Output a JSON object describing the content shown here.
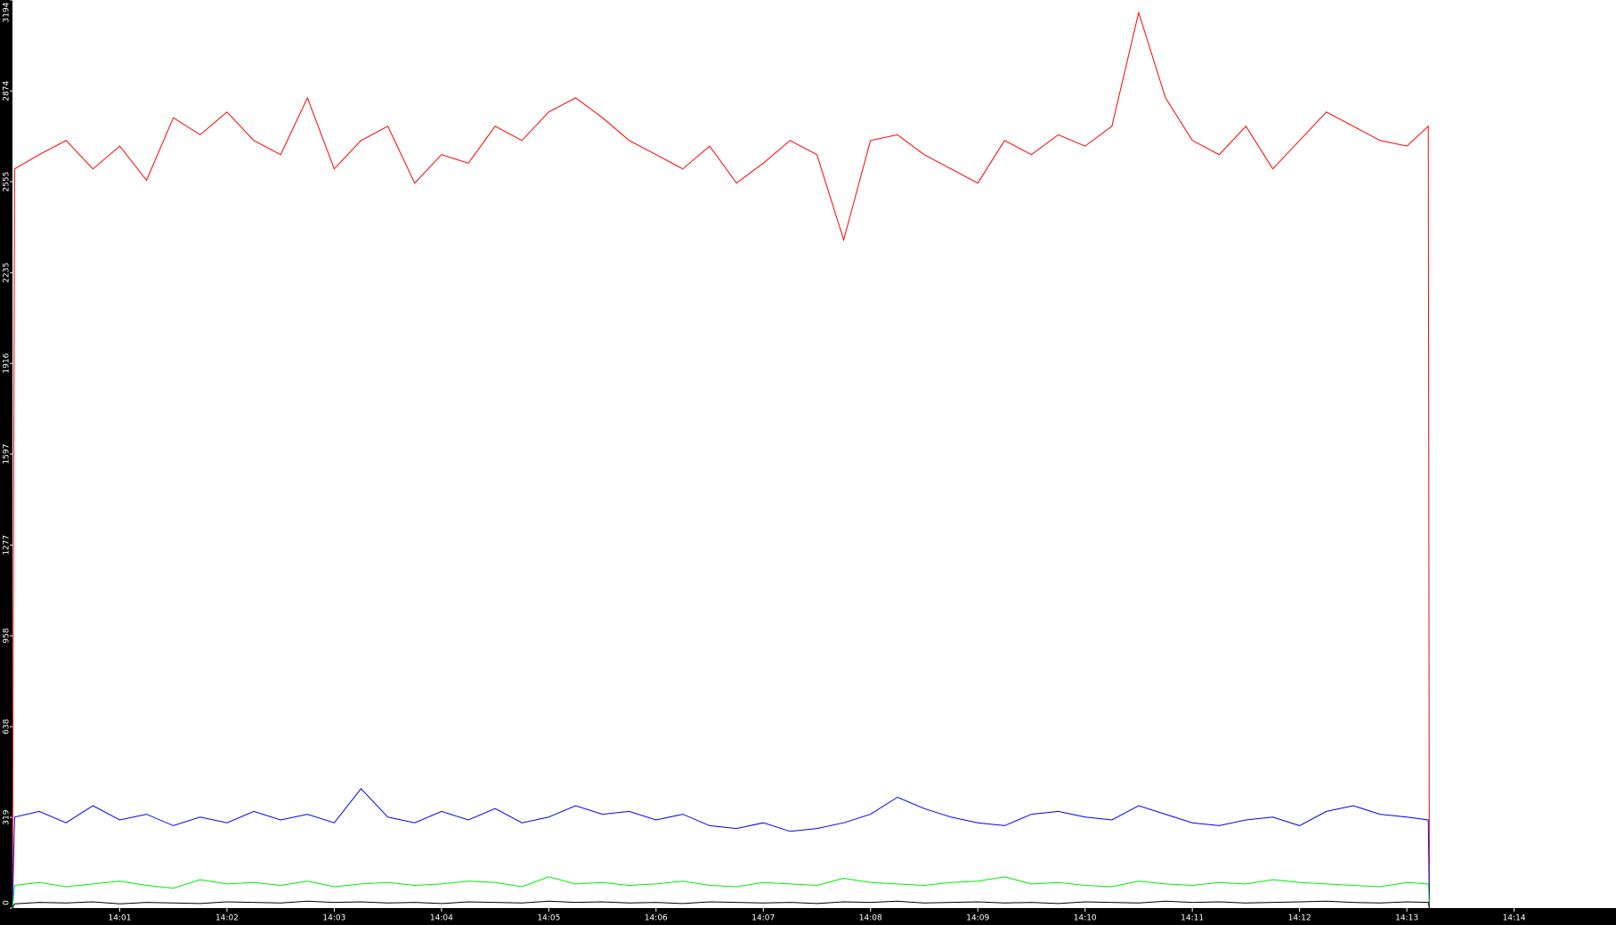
{
  "chart_data": {
    "type": "line",
    "x": [
      0,
      0.02,
      0.25,
      0.5,
      0.75,
      1.0,
      1.25,
      1.5,
      1.75,
      2.0,
      2.25,
      2.5,
      2.75,
      3.0,
      3.25,
      3.5,
      3.75,
      4.0,
      4.25,
      4.5,
      4.75,
      5.0,
      5.25,
      5.5,
      5.75,
      6.0,
      6.25,
      6.5,
      6.75,
      7.0,
      7.25,
      7.5,
      7.75,
      8.0,
      8.25,
      8.5,
      8.75,
      9.0,
      9.25,
      9.5,
      9.75,
      10.0,
      10.25,
      10.5,
      10.75,
      11.0,
      11.25,
      11.5,
      11.75,
      12.0,
      12.25,
      12.5,
      12.75,
      13.0,
      13.2,
      13.21
    ],
    "series": [
      {
        "color": "#ff0000",
        "values": [
          0,
          2600,
          2650,
          2700,
          2600,
          2680,
          2560,
          2780,
          2720,
          2800,
          2700,
          2650,
          2850,
          2600,
          2700,
          2750,
          2550,
          2650,
          2620,
          2750,
          2700,
          2800,
          2850,
          2780,
          2700,
          2650,
          2600,
          2680,
          2550,
          2620,
          2700,
          2650,
          2350,
          2700,
          2720,
          2650,
          2600,
          2550,
          2700,
          2650,
          2720,
          2680,
          2750,
          3150,
          2850,
          2700,
          2650,
          2750,
          2600,
          2700,
          2800,
          2750,
          2700,
          2680,
          2750,
          0
        ]
      },
      {
        "color": "#0000ff",
        "values": [
          0,
          320,
          340,
          300,
          360,
          310,
          330,
          290,
          320,
          300,
          340,
          310,
          330,
          300,
          420,
          320,
          300,
          340,
          310,
          350,
          300,
          320,
          360,
          330,
          340,
          310,
          330,
          290,
          280,
          300,
          270,
          280,
          300,
          330,
          390,
          350,
          320,
          300,
          290,
          330,
          340,
          320,
          310,
          360,
          330,
          300,
          290,
          310,
          320,
          290,
          340,
          360,
          330,
          320,
          310,
          0
        ]
      },
      {
        "color": "#00ee00",
        "values": [
          0,
          80,
          90,
          75,
          85,
          95,
          80,
          70,
          100,
          85,
          90,
          80,
          95,
          75,
          85,
          90,
          80,
          85,
          95,
          90,
          75,
          110,
          85,
          90,
          80,
          85,
          95,
          80,
          75,
          90,
          85,
          80,
          105,
          90,
          85,
          80,
          90,
          95,
          110,
          85,
          90,
          80,
          75,
          95,
          85,
          80,
          90,
          85,
          100,
          90,
          85,
          80,
          75,
          90,
          85,
          0
        ]
      },
      {
        "color": "#000000",
        "values": [
          0,
          15,
          20,
          18,
          22,
          15,
          20,
          18,
          16,
          22,
          20,
          18,
          24,
          20,
          22,
          18,
          20,
          16,
          22,
          20,
          18,
          24,
          20,
          22,
          18,
          20,
          16,
          22,
          20,
          18,
          20,
          16,
          22,
          20,
          24,
          18,
          20,
          22,
          18,
          20,
          16,
          22,
          20,
          18,
          24,
          20,
          22,
          18,
          20,
          22,
          24,
          20,
          18,
          22,
          20,
          0
        ]
      }
    ],
    "xlim": [
      0,
      14.95
    ],
    "xticks": [
      {
        "value": 1,
        "label": "14:01"
      },
      {
        "value": 2,
        "label": "14:02"
      },
      {
        "value": 3,
        "label": "14:03"
      },
      {
        "value": 4,
        "label": "14:04"
      },
      {
        "value": 5,
        "label": "14:05"
      },
      {
        "value": 6,
        "label": "14:06"
      },
      {
        "value": 7,
        "label": "14:07"
      },
      {
        "value": 8,
        "label": "14:08"
      },
      {
        "value": 9,
        "label": "14:09"
      },
      {
        "value": 10,
        "label": "14:10"
      },
      {
        "value": 11,
        "label": "14:11"
      },
      {
        "value": 12,
        "label": "14:12"
      },
      {
        "value": 13,
        "label": "14:13"
      },
      {
        "value": 14,
        "label": "14:14"
      }
    ],
    "ylim": [
      0,
      3194
    ],
    "yticks": [
      0,
      319,
      638,
      958,
      1277,
      1597,
      1916,
      2235,
      2555,
      2874,
      3194
    ]
  }
}
